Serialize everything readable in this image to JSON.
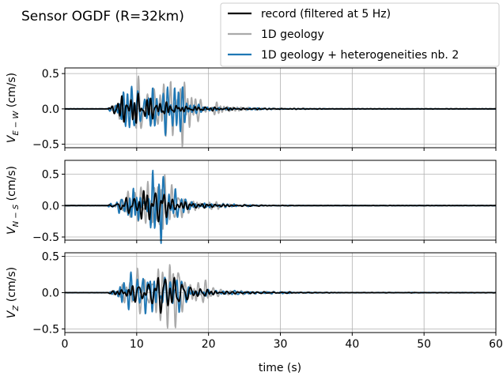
{
  "title": "Sensor OGDF (R=32km)",
  "chart_data": {
    "type": "line",
    "xlabel": "time (s)",
    "xlim": [
      0,
      60
    ],
    "xticks": [
      0,
      10,
      20,
      30,
      40,
      50,
      60
    ],
    "grid": true,
    "legend": {
      "placement": "top-right, outside axes",
      "entries": [
        {
          "label": "record (filtered at 5 Hz)",
          "color": "#000000"
        },
        {
          "label": "1D geology",
          "color": "#aaaaaa"
        },
        {
          "label": "1D geology + heterogeneities nb. 2",
          "color": "#1f77b4"
        }
      ]
    },
    "panels": [
      {
        "component": "E-W",
        "ylabel_main": "V",
        "ylabel_sub": "E − W",
        "ylabel_unit": " (cm/s)",
        "ylim": [
          -0.55,
          0.58
        ],
        "yticks": [
          -0.5,
          0.0,
          0.5
        ],
        "ytick_labels": [
          "−0.5",
          "0.0",
          "0.5"
        ],
        "series": [
          {
            "name": "record (filtered at 5 Hz)",
            "color": "#000000",
            "onset": 6,
            "amps": [
              0.02,
              0.1,
              0.15,
              0.18,
              0.25,
              0.2,
              0.15,
              0.12,
              0.1,
              0.08,
              0.06,
              0.05,
              0.04,
              0.035,
              0.03,
              0.025,
              0.02,
              0.02,
              0.015,
              0.012,
              0.01,
              0.01,
              0.01,
              0.008,
              0.008,
              0.006,
              0.005,
              0.005,
              0.004,
              0.004,
              0.003,
              0.003,
              0.002,
              0.002,
              0.002
            ]
          },
          {
            "name": "1D geology",
            "color": "#aaaaaa",
            "onset": 6,
            "amps": [
              0.02,
              0.05,
              0.15,
              0.2,
              0.35,
              0.5,
              0.4,
              0.3,
              0.32,
              0.38,
              0.42,
              0.3,
              0.22,
              0.15,
              0.1,
              0.07,
              0.05,
              0.04,
              0.03,
              0.025,
              0.02,
              0.02,
              0.015,
              0.01,
              0.01,
              0.008,
              0.006,
              0.005,
              0.004,
              0.004,
              0.003,
              0.003,
              0.002,
              0.002,
              0.002
            ]
          },
          {
            "name": "1D geology + heterogeneities nb. 2",
            "color": "#1f77b4",
            "onset": 6,
            "amps": [
              0.02,
              0.06,
              0.2,
              0.3,
              0.4,
              0.35,
              0.3,
              0.32,
              0.35,
              0.3,
              0.25,
              0.15,
              0.1,
              0.06,
              0.04,
              0.03,
              0.025,
              0.02,
              0.02,
              0.015,
              0.01,
              0.01,
              0.008,
              0.008,
              0.006,
              0.005,
              0.004,
              0.004,
              0.003,
              0.003,
              0.003,
              0.002,
              0.002,
              0.002,
              0.002
            ]
          }
        ]
      },
      {
        "component": "N-S",
        "ylabel_main": "V",
        "ylabel_sub": "N − S",
        "ylabel_unit": " (cm/s)",
        "ylim": [
          -0.55,
          0.72
        ],
        "yticks": [
          -0.5,
          0.0,
          0.5
        ],
        "ytick_labels": [
          "−0.5",
          "0.0",
          "0.5"
        ],
        "series": [
          {
            "name": "record (filtered at 5 Hz)",
            "color": "#000000",
            "onset": 6,
            "amps": [
              0.01,
              0.03,
              0.08,
              0.12,
              0.2,
              0.3,
              0.2,
              0.18,
              0.15,
              0.1,
              0.07,
              0.05,
              0.04,
              0.03,
              0.025,
              0.02,
              0.02,
              0.015,
              0.012,
              0.01,
              0.01,
              0.008,
              0.006,
              0.005,
              0.005,
              0.004,
              0.003,
              0.003,
              0.002,
              0.002,
              0.002,
              0.002,
              0.002,
              0.002,
              0.002
            ]
          },
          {
            "name": "1D geology",
            "color": "#aaaaaa",
            "onset": 6,
            "amps": [
              0.01,
              0.05,
              0.15,
              0.25,
              0.3,
              0.35,
              0.45,
              0.4,
              0.38,
              0.3,
              0.2,
              0.15,
              0.1,
              0.07,
              0.05,
              0.04,
              0.03,
              0.025,
              0.02,
              0.015,
              0.01,
              0.01,
              0.008,
              0.006,
              0.005,
              0.004,
              0.004,
              0.003,
              0.003,
              0.003,
              0.002,
              0.002,
              0.002,
              0.002,
              0.002
            ]
          },
          {
            "name": "1D geology + heterogeneities nb. 2",
            "color": "#1f77b4",
            "onset": 6,
            "amps": [
              0.01,
              0.05,
              0.15,
              0.22,
              0.3,
              0.35,
              0.32,
              0.6,
              0.4,
              0.25,
              0.15,
              0.1,
              0.07,
              0.05,
              0.04,
              0.03,
              0.025,
              0.02,
              0.015,
              0.012,
              0.01,
              0.008,
              0.006,
              0.005,
              0.004,
              0.004,
              0.003,
              0.003,
              0.002,
              0.002,
              0.002,
              0.002,
              0.002,
              0.002,
              0.002
            ]
          }
        ]
      },
      {
        "component": "Z",
        "ylabel_main": "V",
        "ylabel_sub": "Z",
        "ylabel_unit": " (cm/s)",
        "ylim": [
          -0.55,
          0.55
        ],
        "yticks": [
          -0.5,
          0.0,
          0.5
        ],
        "ytick_labels": [
          "−0.5",
          "0.0",
          "0.5"
        ],
        "series": [
          {
            "name": "record (filtered at 5 Hz)",
            "color": "#000000",
            "onset": 6,
            "amps": [
              0.02,
              0.05,
              0.08,
              0.1,
              0.12,
              0.15,
              0.2,
              0.25,
              0.22,
              0.2,
              0.18,
              0.12,
              0.08,
              0.06,
              0.05,
              0.04,
              0.03,
              0.025,
              0.02,
              0.02,
              0.015,
              0.012,
              0.01,
              0.01,
              0.008,
              0.008,
              0.006,
              0.005,
              0.005,
              0.004,
              0.004,
              0.003,
              0.003,
              0.002,
              0.002
            ]
          },
          {
            "name": "1D geology",
            "color": "#aaaaaa",
            "onset": 6,
            "amps": [
              0.02,
              0.05,
              0.15,
              0.2,
              0.25,
              0.3,
              0.4,
              0.45,
              0.48,
              0.5,
              0.42,
              0.3,
              0.2,
              0.14,
              0.1,
              0.08,
              0.06,
              0.05,
              0.04,
              0.03,
              0.025,
              0.02,
              0.015,
              0.012,
              0.01,
              0.01,
              0.008,
              0.006,
              0.005,
              0.004,
              0.004,
              0.003,
              0.003,
              0.002,
              0.002
            ]
          },
          {
            "name": "1D geology + heterogeneities nb. 2",
            "color": "#1f77b4",
            "onset": 6,
            "amps": [
              0.02,
              0.06,
              0.15,
              0.18,
              0.22,
              0.28,
              0.3,
              0.25,
              0.3,
              0.28,
              0.22,
              0.18,
              0.12,
              0.09,
              0.07,
              0.05,
              0.04,
              0.035,
              0.03,
              0.025,
              0.02,
              0.018,
              0.015,
              0.012,
              0.01,
              0.01,
              0.008,
              0.006,
              0.005,
              0.004,
              0.004,
              0.003,
              0.003,
              0.002,
              0.002
            ]
          }
        ]
      }
    ]
  }
}
